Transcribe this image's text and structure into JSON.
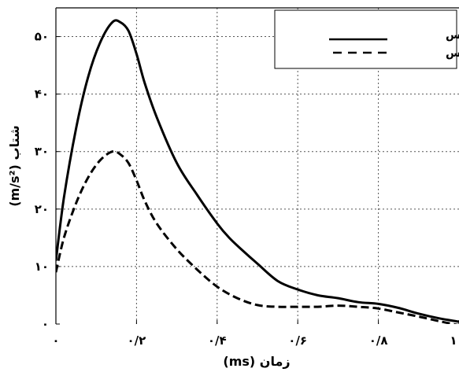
{
  "chart_data": {
    "type": "line",
    "xlabel": "زمان (ms)",
    "ylabel": "شتاب (m/s²)",
    "xlim": [
      0,
      1
    ],
    "ylim": [
      0,
      55
    ],
    "x_ticks": [
      0,
      0.2,
      0.4,
      0.6,
      0.8,
      1
    ],
    "x_tick_labels": [
      "۰",
      "۰/۲",
      "۰/۴",
      "۰/۶",
      "۰/۸",
      "۱"
    ],
    "y_ticks": [
      0,
      10,
      20,
      30,
      40,
      50
    ],
    "y_tick_labels": [
      "۰",
      "۱۰",
      "۲۰",
      "۳۰",
      "۴۰",
      "۵۰"
    ],
    "grid": true,
    "legend_position": "top-right",
    "series": [
      {
        "name": "متجانس",
        "style": "solid",
        "color": "#000000",
        "x": [
          0,
          0.02,
          0.05,
          0.08,
          0.11,
          0.14,
          0.16,
          0.18,
          0.2,
          0.22,
          0.25,
          0.3,
          0.35,
          0.4,
          0.43,
          0.46,
          0.5,
          0.55,
          0.6,
          0.65,
          0.7,
          0.75,
          0.8,
          0.85,
          0.9,
          0.95,
          1.0
        ],
        "y": [
          11,
          22,
          34,
          43,
          49,
          52.5,
          52.5,
          51,
          47,
          42,
          36,
          28,
          22.5,
          17.5,
          15,
          13,
          10.5,
          7.5,
          6,
          5,
          4.5,
          3.8,
          3.5,
          2.8,
          1.8,
          1,
          0.4
        ]
      },
      {
        "name": "نامتجانس",
        "style": "dashed",
        "color": "#000000",
        "x": [
          0,
          0.02,
          0.05,
          0.08,
          0.11,
          0.14,
          0.16,
          0.18,
          0.2,
          0.22,
          0.25,
          0.3,
          0.35,
          0.4,
          0.45,
          0.5,
          0.55,
          0.6,
          0.65,
          0.7,
          0.75,
          0.8,
          0.85,
          0.9,
          0.95,
          1.0
        ],
        "y": [
          9,
          15,
          21,
          25.5,
          28.5,
          30,
          29.5,
          28,
          25,
          21.5,
          17.5,
          13,
          9.5,
          6.5,
          4.5,
          3.3,
          3,
          3,
          3,
          3.2,
          3,
          2.7,
          2,
          1.3,
          0.5,
          -0.2
        ]
      }
    ]
  }
}
